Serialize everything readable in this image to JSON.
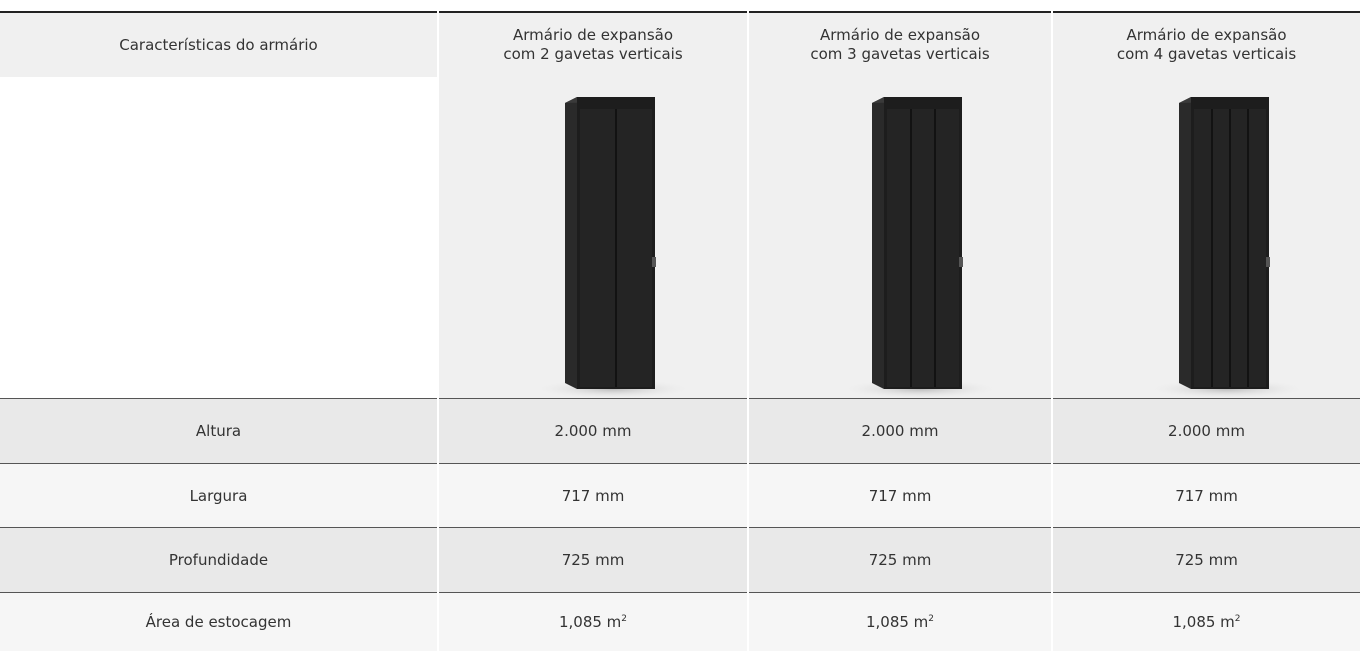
{
  "table": {
    "header": [
      [
        "Características do armário"
      ],
      [
        "Armário de expansão",
        "com 2 gavetas verticais"
      ],
      [
        "Armário de expansão",
        "com 3 gavetas verticais"
      ],
      [
        "Armário de expansão",
        "com 4 gavetas verticais"
      ]
    ],
    "rows": [
      [
        {
          "text": "Altura"
        },
        {
          "text": "2.000 mm"
        },
        {
          "text": "2.000 mm"
        },
        {
          "text": "2.000 mm"
        }
      ],
      [
        {
          "text": "Largura"
        },
        {
          "text": "717 mm"
        },
        {
          "text": "717 mm"
        },
        {
          "text": "717 mm"
        }
      ],
      [
        {
          "text": "Profundidade"
        },
        {
          "text": "725 mm"
        },
        {
          "text": "725 mm"
        },
        {
          "text": "725 mm"
        }
      ],
      [
        {
          "text": "Área de estocagem"
        },
        {
          "text": "1,085 m",
          "sup": "2"
        },
        {
          "text": "1,085 m",
          "sup": "2"
        },
        {
          "text": "1,085 m",
          "sup": "2"
        }
      ]
    ]
  }
}
